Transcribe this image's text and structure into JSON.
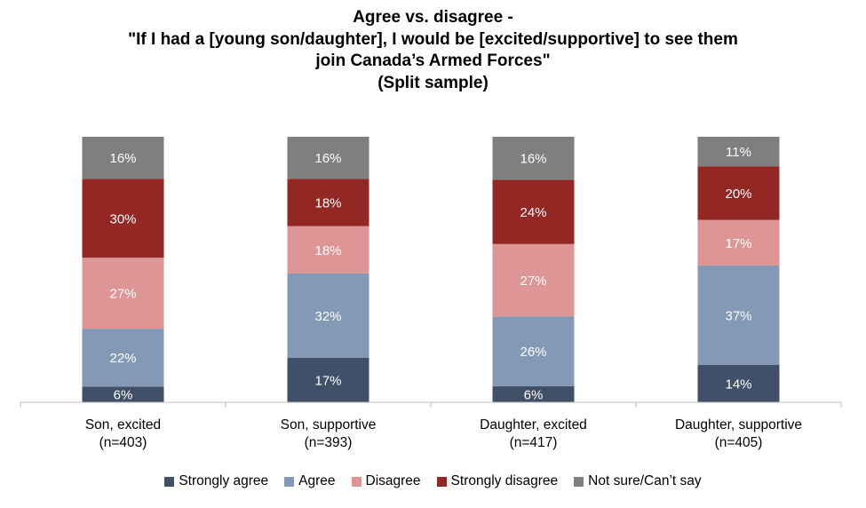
{
  "chart_data": {
    "type": "bar",
    "stacked": true,
    "percent": true,
    "title_lines": [
      "Agree vs. disagree -",
      "\"If I had a [young son/daughter], I would be [excited/supportive] to see them",
      "join Canada’s Armed Forces\"",
      "(Split sample)"
    ],
    "categories": [
      {
        "label": "Son, excited",
        "n": "(n=403)"
      },
      {
        "label": "Son, supportive",
        "n": "(n=393)"
      },
      {
        "label": "Daughter, excited",
        "n": "(n=417)"
      },
      {
        "label": "Daughter, supportive",
        "n": "(n=405)"
      }
    ],
    "series": [
      {
        "name": "Strongly agree",
        "color": "#3f5068",
        "label_color": "#ffffff",
        "values": [
          6,
          17,
          6,
          14
        ]
      },
      {
        "name": "Agree",
        "color": "#8499b5",
        "label_color": "#ffffff",
        "values": [
          22,
          32,
          26,
          37
        ]
      },
      {
        "name": "Disagree",
        "color": "#dd9695",
        "label_color": "#ffffff",
        "values": [
          27,
          18,
          27,
          17
        ]
      },
      {
        "name": "Strongly disagree",
        "color": "#922723",
        "label_color": "#ffffff",
        "values": [
          30,
          18,
          24,
          20
        ]
      },
      {
        "name": "Not sure/Can’t say",
        "color": "#7f7f7f",
        "label_color": "#ffffff",
        "values": [
          16,
          16,
          16,
          11
        ]
      }
    ],
    "ylim": [
      0,
      100
    ],
    "legend_position": "bottom",
    "grid": false
  }
}
